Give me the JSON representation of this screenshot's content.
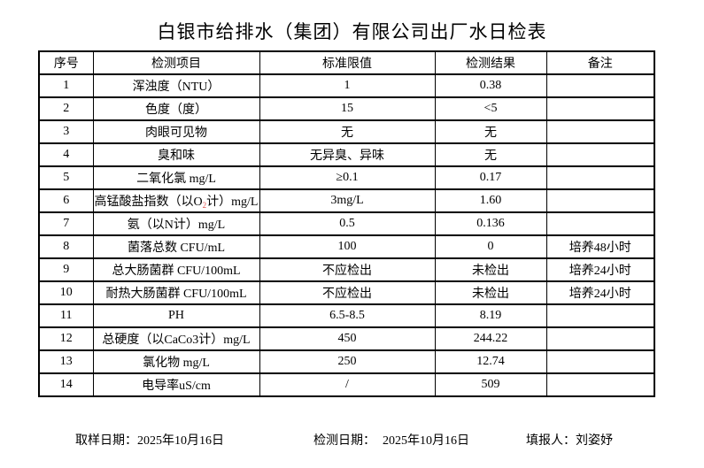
{
  "title": "白银市给排水（集团）有限公司出厂水日检表",
  "table": {
    "headers": [
      "序号",
      "检测项目",
      "标准限值",
      "检测结果",
      "备注"
    ],
    "rows": [
      {
        "no": "1",
        "item": "浑浊度（NTU）",
        "limit": "1",
        "result": "0.38",
        "note": ""
      },
      {
        "no": "2",
        "item": "色度（度）",
        "limit": "15",
        "result": "<5",
        "note": ""
      },
      {
        "no": "3",
        "item": "肉眼可见物",
        "limit": "无",
        "result": "无",
        "note": ""
      },
      {
        "no": "4",
        "item": "臭和味",
        "limit": "无异臭、异味",
        "result": "无",
        "note": ""
      },
      {
        "no": "5",
        "item": "二氧化氯 mg/L",
        "limit": "≥0.1",
        "result": "0.17",
        "note": ""
      },
      {
        "no": "6",
        "item": "高锰酸盐指数（以O~2~计）mg/L",
        "limit": "3mg/L",
        "result": "1.60",
        "note": ""
      },
      {
        "no": "7",
        "item": "氨（以N计）mg/L",
        "limit": "0.5",
        "result": "0.136",
        "note": ""
      },
      {
        "no": "8",
        "item": "菌落总数 CFU/mL",
        "limit": "100",
        "result": "0",
        "note": "培养48小时"
      },
      {
        "no": "9",
        "item": "总大肠菌群 CFU/100mL",
        "limit": "不应检出",
        "result": "未检出",
        "note": "培养24小时"
      },
      {
        "no": "10",
        "item": "耐热大肠菌群 CFU/100mL",
        "limit": "不应检出",
        "result": "未检出",
        "note": "培养24小时"
      },
      {
        "no": "11",
        "item": "PH",
        "limit": "6.5-8.5",
        "result": "8.19",
        "note": ""
      },
      {
        "no": "12",
        "item": "总硬度（以CaCo3计）mg/L",
        "limit": "450",
        "result": "244.22",
        "note": ""
      },
      {
        "no": "13",
        "item": "氯化物 mg/L",
        "limit": "250",
        "result": "12.74",
        "note": ""
      },
      {
        "no": "14",
        "item": "电导率uS/cm",
        "limit": "/",
        "result": "509",
        "note": ""
      }
    ]
  },
  "footer": {
    "sampling_label": "取样日期：",
    "sampling_date": "2025年10月16日",
    "testing_label": "检测日期：",
    "testing_date": "2025年10月16日",
    "reporter_label": "填报人：",
    "reporter_name": "刘姿妤"
  },
  "colors": {
    "text": "#000000",
    "border": "#000000",
    "background": "#ffffff",
    "subscript": "#e0524f"
  }
}
